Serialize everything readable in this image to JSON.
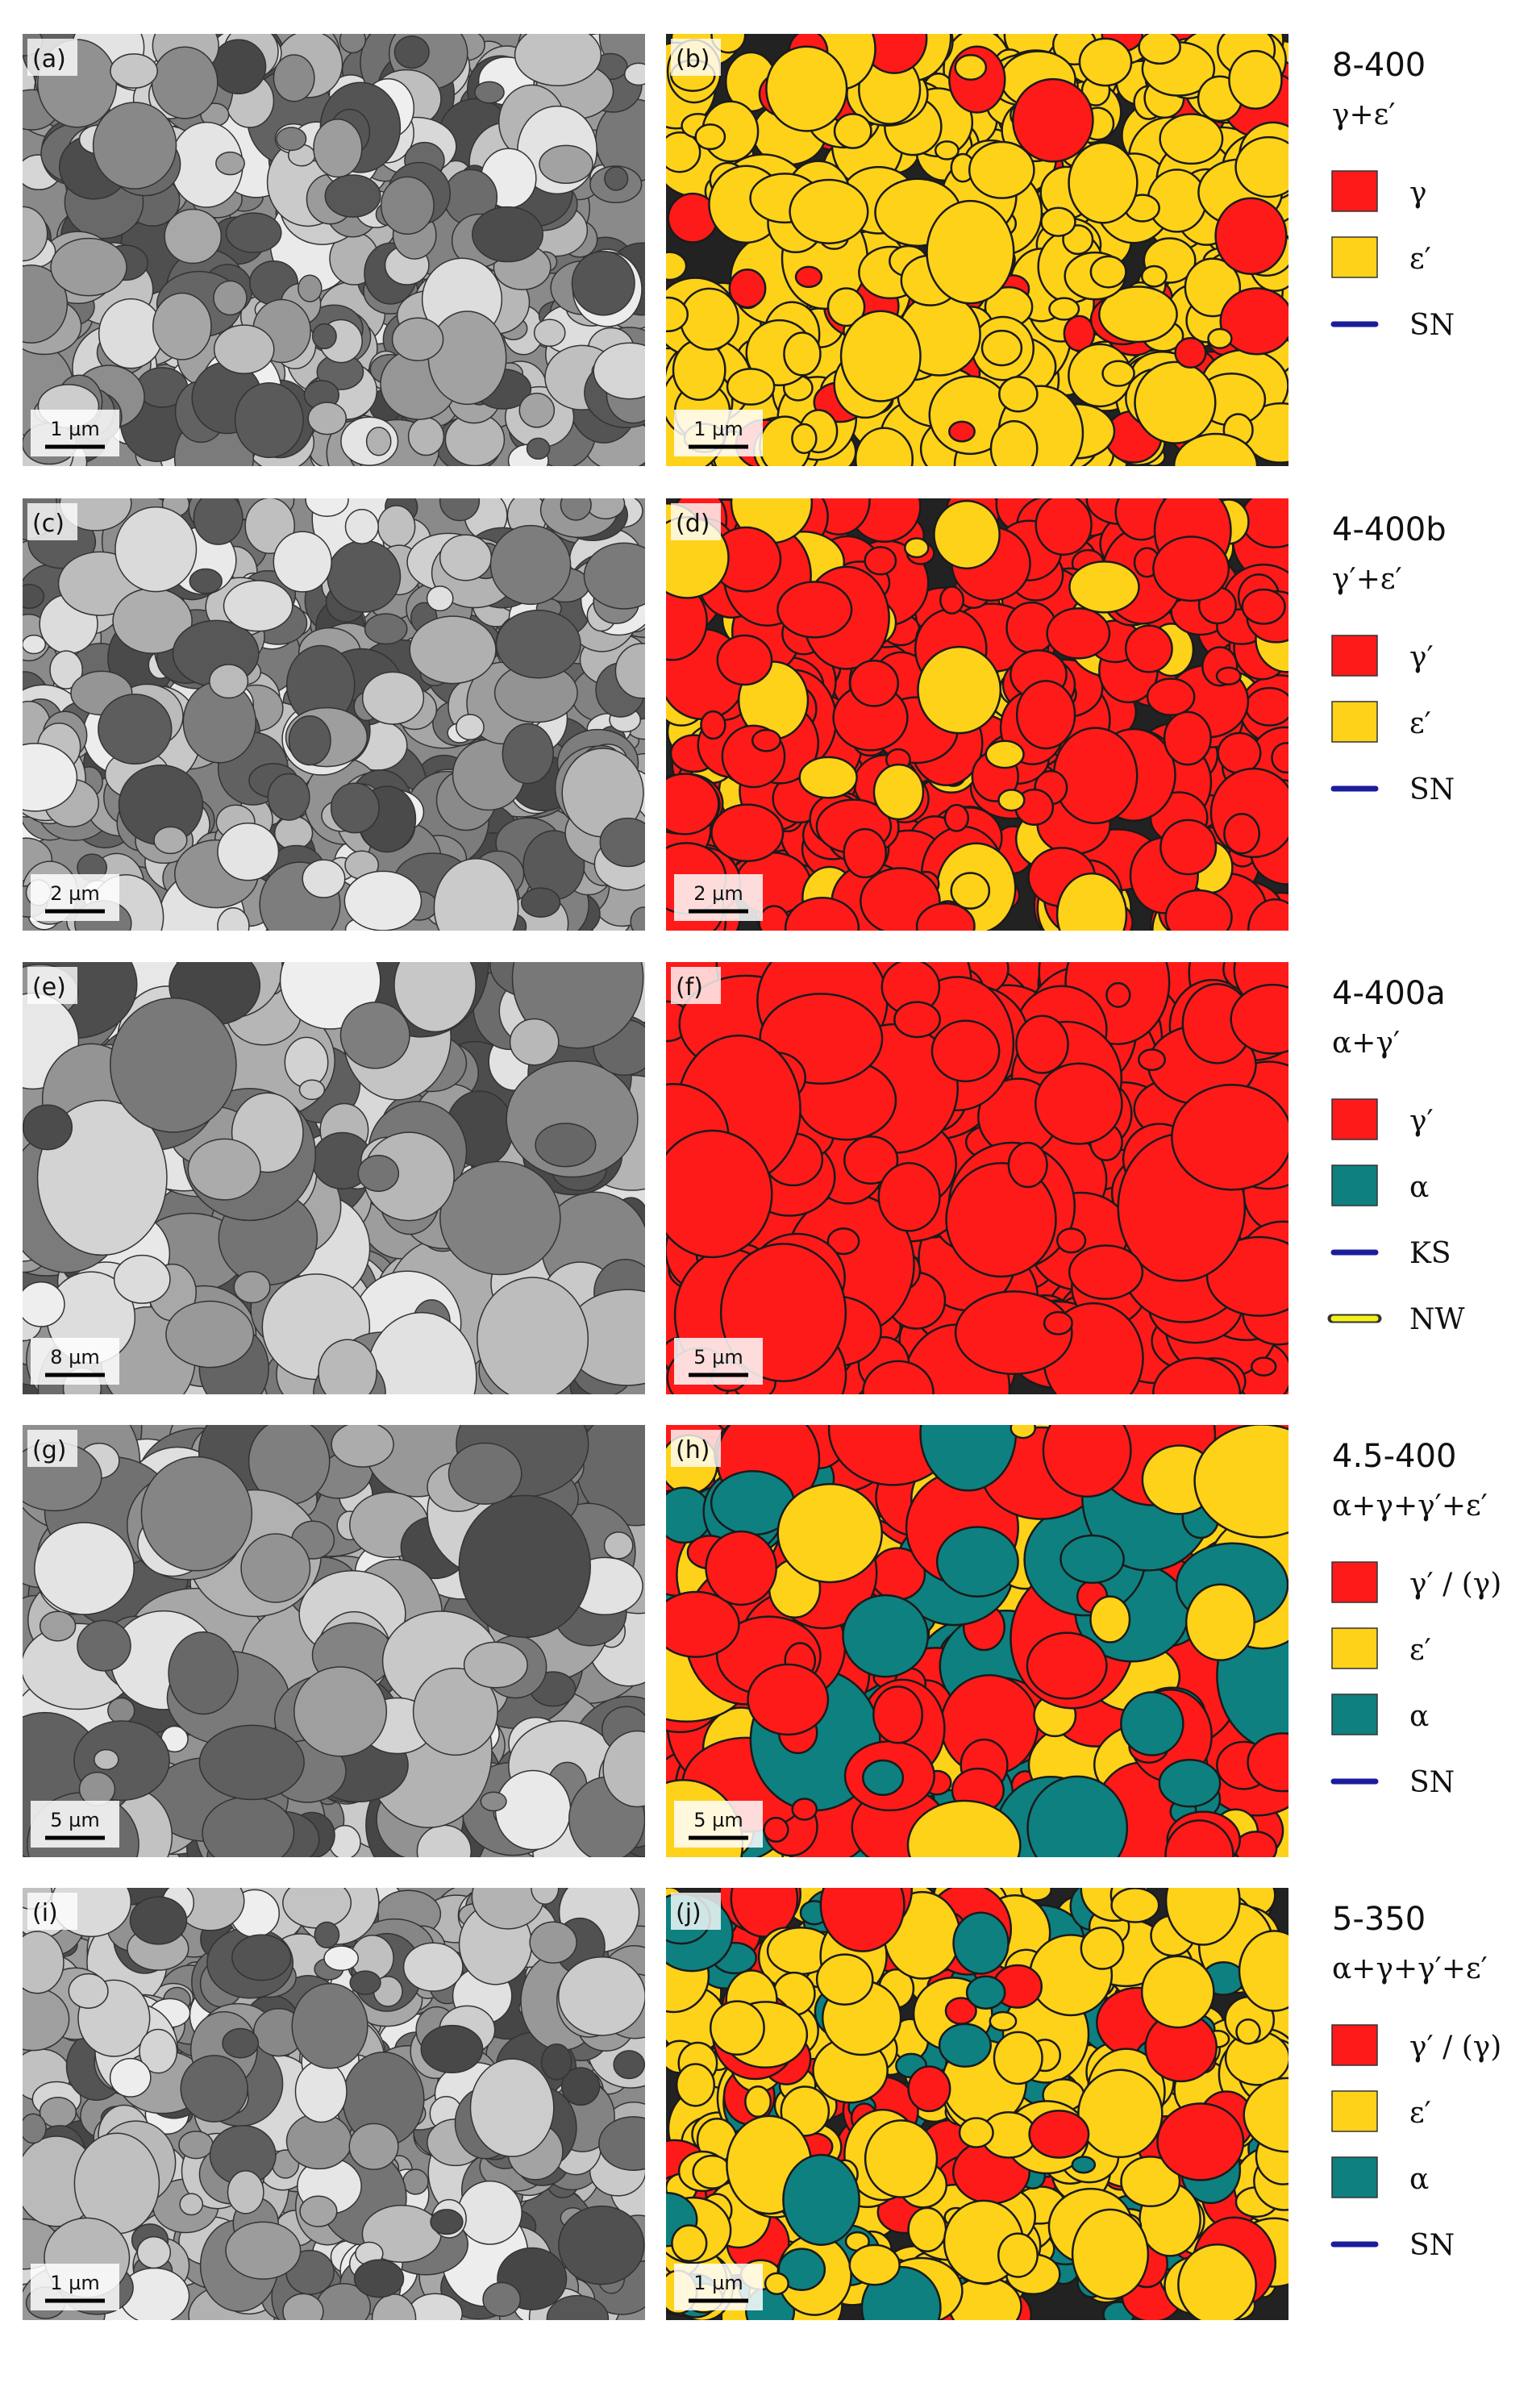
{
  "panels": [
    {
      "left": {
        "label": "(a)",
        "scale_bar": "1 µm"
      },
      "right": {
        "label": "(b)",
        "scale_bar": "1 µm"
      },
      "legend": {
        "title": "8-400",
        "phases": "γ+ε′",
        "items": [
          {
            "label": "γ",
            "swatch": "#ff1a1a"
          },
          {
            "label": "ε′",
            "swatch": "#ffd21a"
          },
          {
            "label": "SN",
            "line": "#1c1c9c"
          }
        ]
      }
    },
    {
      "left": {
        "label": "(c)",
        "scale_bar": "2 µm"
      },
      "right": {
        "label": "(d)",
        "scale_bar": "2 µm"
      },
      "legend": {
        "title": "4-400b",
        "phases": "γ′+ε′",
        "items": [
          {
            "label": "γ′",
            "swatch": "#ff1a1a"
          },
          {
            "label": "ε′",
            "swatch": "#ffd21a"
          },
          {
            "label": "SN",
            "line": "#1c1c9c"
          }
        ]
      }
    },
    {
      "left": {
        "label": "(e)",
        "scale_bar": "8 µm"
      },
      "right": {
        "label": "(f)",
        "scale_bar": "5 µm"
      },
      "legend": {
        "title": "4-400a",
        "phases": "α+γ′",
        "items": [
          {
            "label": "γ′",
            "swatch": "#ff1a1a"
          },
          {
            "label": "α",
            "swatch": "#0e8080"
          },
          {
            "label": "KS",
            "line": "#1c1c9c"
          },
          {
            "label": "NW",
            "line": "#f2f21a"
          }
        ]
      }
    },
    {
      "left": {
        "label": "(g)",
        "scale_bar": "5 µm"
      },
      "right": {
        "label": "(h)",
        "scale_bar": "5 µm"
      },
      "legend": {
        "title": "4.5-400",
        "phases": "α+γ+γ′+ε′",
        "items": [
          {
            "label": "γ′ / (γ)",
            "swatch": "#ff1a1a"
          },
          {
            "label": "ε′",
            "swatch": "#ffd21a"
          },
          {
            "label": "α",
            "swatch": "#0e8080"
          },
          {
            "label": "SN",
            "line": "#1c1c9c"
          }
        ]
      }
    },
    {
      "left": {
        "label": "(i)",
        "scale_bar": "1 µm"
      },
      "right": {
        "label": "(j)",
        "scale_bar": "1 µm"
      },
      "legend": {
        "title": "5-350",
        "phases": "α+γ+γ′+ε′",
        "items": [
          {
            "label": "γ′ / (γ)",
            "swatch": "#ff1a1a"
          },
          {
            "label": "ε′",
            "swatch": "#ffd21a"
          },
          {
            "label": "α",
            "swatch": "#0e8080"
          },
          {
            "label": "SN",
            "line": "#1c1c9c"
          }
        ]
      }
    }
  ]
}
